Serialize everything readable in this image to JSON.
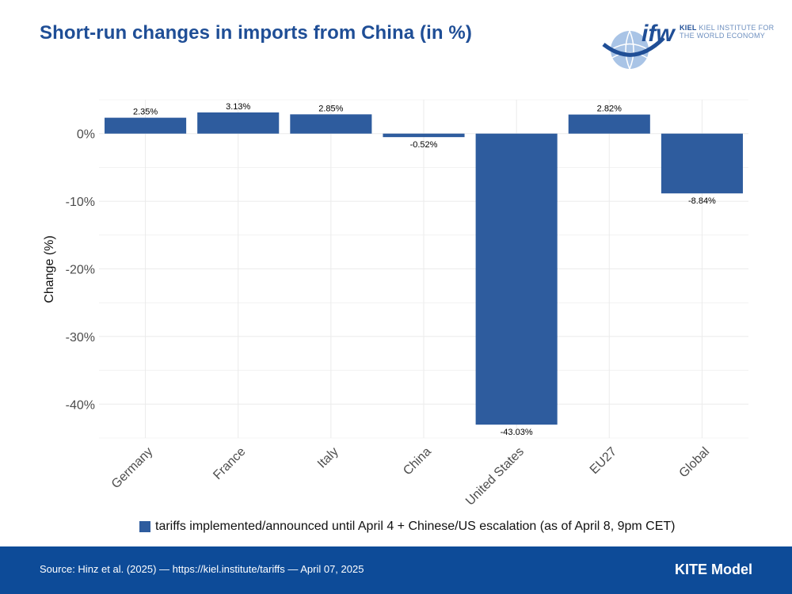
{
  "header": {
    "title": "Short-run changes in imports from China (in %)"
  },
  "logo": {
    "mark": "ifw",
    "line1": "KIEL INSTITUTE FOR",
    "line2": "THE WORLD ECONOMY"
  },
  "chart_data": {
    "type": "bar",
    "title": "Short-run changes in imports from China (in %)",
    "xlabel": "",
    "ylabel": "Change (%)",
    "categories": [
      "Germany",
      "France",
      "Italy",
      "China",
      "United States",
      "EU27",
      "Global"
    ],
    "series": [
      {
        "name": "tariffs implemented/announced until April 4 + Chinese/US escalation (as of April 8, 9pm CET)",
        "values": [
          2.35,
          3.13,
          2.85,
          -0.52,
          -43.03,
          2.82,
          -8.84
        ],
        "labels": [
          "2.35%",
          "3.13%",
          "2.85%",
          "-0.52%",
          "-43.03%",
          "2.82%",
          "-8.84%"
        ]
      }
    ],
    "yticks": [
      0,
      -10,
      -20,
      -30,
      -40
    ],
    "ytick_labels": [
      "0%",
      "-10%",
      "-20%",
      "-30%",
      "-40%"
    ],
    "ylim": [
      -45,
      5
    ],
    "grid": true,
    "legend_position": "bottom",
    "bar_color": "#2e5c9e"
  },
  "legend": {
    "label": "tariffs implemented/announced until April 4 + Chinese/US escalation (as of April 8, 9pm CET)"
  },
  "footer": {
    "source": "Source: Hinz et al. (2025) — https://kiel.institute/tariffs — April 07, 2025",
    "model": "KITE Model"
  },
  "colors": {
    "title": "#1f4e96",
    "bar": "#2e5c9e",
    "footer_bg": "#0d4b98"
  }
}
